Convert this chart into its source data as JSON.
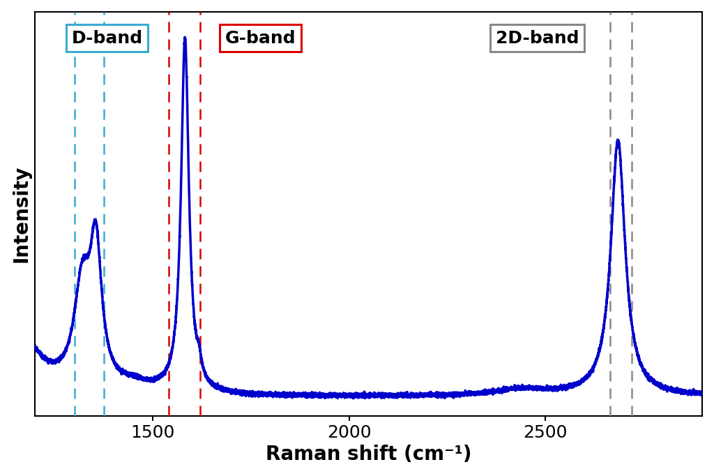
{
  "x_min": 1200,
  "x_max": 2900,
  "y_min": 0.0,
  "y_max": 1.08,
  "xlabel": "Raman shift (cm⁻¹)",
  "ylabel": "Intensity",
  "line_color": "#0000cc",
  "line_width": 2.5,
  "d_band_lines": [
    1300,
    1375
  ],
  "g_band_lines": [
    1540,
    1620
  ],
  "twod_band_lines": [
    2665,
    2720
  ],
  "d_band_color": "#3aabcf",
  "g_band_color": "#dd0000",
  "twod_band_color": "#888888",
  "d_label": "D-band",
  "g_label": "G-band",
  "twod_label": "2D-band",
  "d_box_color": "#3aabcf",
  "g_box_color": "#dd0000",
  "twod_box_color": "#888888",
  "background": "#ffffff",
  "label_fontsize": 20,
  "tick_fontsize": 18,
  "band_label_fontsize": 18
}
